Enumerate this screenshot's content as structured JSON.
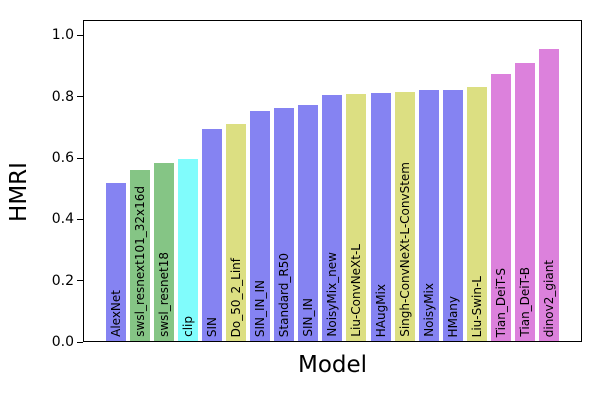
{
  "chart_data": {
    "type": "bar",
    "title": "",
    "xlabel": "Model",
    "ylabel": "HMRI",
    "ylim": [
      0,
      1.05
    ],
    "yticks": [
      "0.0",
      "0.2",
      "0.4",
      "0.6",
      "0.8",
      "1.0"
    ],
    "ytick_values": [
      0.0,
      0.2,
      0.4,
      0.6,
      0.8,
      1.0
    ],
    "grid": false,
    "legend": "none",
    "palette": {
      "purple": "#8583F2",
      "green": "#85C585",
      "cyan": "#80FCFC",
      "yellow": "#DCDF82",
      "pink": "#DC81DC"
    },
    "bars": [
      {
        "label": "AlexNet",
        "value": 0.52,
        "color": "#8583F2"
      },
      {
        "label": "swsl_resnext101_32x16d",
        "value": 0.56,
        "color": "#85C585"
      },
      {
        "label": "swsl_resnet18",
        "value": 0.585,
        "color": "#85C585"
      },
      {
        "label": "clip",
        "value": 0.598,
        "color": "#80FCFC"
      },
      {
        "label": "SIN",
        "value": 0.695,
        "color": "#8583F2"
      },
      {
        "label": "Do_50_2_Linf",
        "value": 0.712,
        "color": "#DCDF82"
      },
      {
        "label": "SIN_IN_IN",
        "value": 0.755,
        "color": "#8583F2"
      },
      {
        "label": "Standard_R50",
        "value": 0.765,
        "color": "#8583F2"
      },
      {
        "label": "SIN_IN",
        "value": 0.776,
        "color": "#8583F2"
      },
      {
        "label": "NoisyMix_new",
        "value": 0.806,
        "color": "#8583F2"
      },
      {
        "label": "Liu-ConvNeXt-L",
        "value": 0.809,
        "color": "#DCDF82"
      },
      {
        "label": "HAugMix",
        "value": 0.813,
        "color": "#8583F2"
      },
      {
        "label": "Singh-ConvNeXt-L-ConvStem",
        "value": 0.816,
        "color": "#DCDF82"
      },
      {
        "label": "NoisyMix",
        "value": 0.823,
        "color": "#8583F2"
      },
      {
        "label": "HMany",
        "value": 0.825,
        "color": "#8583F2"
      },
      {
        "label": "Liu-Swin-L",
        "value": 0.832,
        "color": "#DCDF82"
      },
      {
        "label": "Tian_DeiT-S",
        "value": 0.875,
        "color": "#DC81DC"
      },
      {
        "label": "Tian_DeiT-B",
        "value": 0.911,
        "color": "#DC81DC"
      },
      {
        "label": "dinov2_giant",
        "value": 0.958,
        "color": "#DC81DC"
      }
    ]
  }
}
